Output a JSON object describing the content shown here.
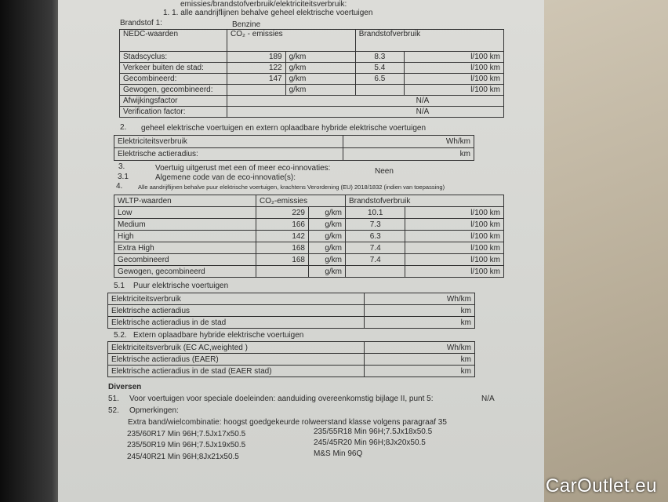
{
  "header_cut": "emissies/brandstofverbruik/elektriciteitsverbruik:",
  "sub_1_1": "1. 1. alle aandrijflijnen behalve geheel elektrische voertuigen",
  "fuel_label": "Brandstof 1:",
  "fuel_value": "Benzine",
  "nedc": {
    "headers": [
      "NEDC-waarden",
      "CO₂ - emissies",
      "Brandstofverbruik"
    ],
    "rows": [
      {
        "label": "Stadscyclus:",
        "co2": "189",
        "co2_unit": "g/km",
        "fuel": "8.3",
        "fuel_unit": "l/100 km"
      },
      {
        "label": "Verkeer buiten de stad:",
        "co2": "122",
        "co2_unit": "g/km",
        "fuel": "5.4",
        "fuel_unit": "l/100 km"
      },
      {
        "label": "Gecombineerd:",
        "co2": "147",
        "co2_unit": "g/km",
        "fuel": "6.5",
        "fuel_unit": "l/100 km"
      },
      {
        "label": "Gewogen, gecombineerd:",
        "co2": "",
        "co2_unit": "g/km",
        "fuel": "",
        "fuel_unit": "l/100 km"
      }
    ],
    "afwijkingsfactor": {
      "label": "Afwijkingsfactor",
      "value": "N/A"
    },
    "verification": {
      "label": "Verification factor:",
      "value": "N/A"
    }
  },
  "sec2": {
    "num": "2.",
    "title": "geheel elektrische voertuigen en extern oplaadbare hybride elektrische voertuigen",
    "rows": [
      {
        "label": "Elektriciteitsverbruik",
        "unit": "Wh/km"
      },
      {
        "label": "Elektrische actieradius:",
        "unit": "km"
      }
    ]
  },
  "sec3": {
    "num": "3.",
    "text": "Voertuig uitgerust met een of meer eco-innovaties:",
    "value": "Neen"
  },
  "sec3_1": {
    "num": "3.1",
    "text": "Algemene code van de eco-innovatie(s):"
  },
  "sec4": {
    "num": "4.",
    "text": "Alle aandrijflijnen behalve puur elektrische voertuigen, krachtens Verordening (EU) 2018/1832 (indien van toepassing)"
  },
  "wltp": {
    "headers": [
      "WLTP-waarden",
      "CO₂-emissies",
      "Brandstofverbruik"
    ],
    "rows": [
      {
        "label": "Low",
        "co2": "229",
        "co2_unit": "g/km",
        "fuel": "10.1",
        "fuel_unit": "l/100 km"
      },
      {
        "label": "Medium",
        "co2": "166",
        "co2_unit": "g/km",
        "fuel": "7.3",
        "fuel_unit": "l/100 km"
      },
      {
        "label": "High",
        "co2": "142",
        "co2_unit": "g/km",
        "fuel": "6.3",
        "fuel_unit": "l/100 km"
      },
      {
        "label": "Extra High",
        "co2": "168",
        "co2_unit": "g/km",
        "fuel": "7.4",
        "fuel_unit": "l/100 km"
      },
      {
        "label": "Gecombineerd",
        "co2": "168",
        "co2_unit": "g/km",
        "fuel": "7.4",
        "fuel_unit": "l/100 km"
      },
      {
        "label": "Gewogen, gecombineerd",
        "co2": "",
        "co2_unit": "g/km",
        "fuel": "",
        "fuel_unit": "l/100 km"
      }
    ]
  },
  "sec5_1": {
    "num": "5.1",
    "title": "Puur elektrische voertuigen",
    "rows": [
      {
        "label": "Elektriciteitsverbruik",
        "unit": "Wh/km"
      },
      {
        "label": "Elektrische actieradius",
        "unit": "km"
      },
      {
        "label": "Elektrische actieradius in de stad",
        "unit": "km"
      }
    ]
  },
  "sec5_2": {
    "num": "5.2.",
    "title": "Extern oplaadbare hybride elektrische voertuigen",
    "rows": [
      {
        "label": "Elektriciteitsverbruik (EC AC,weighted )",
        "unit": "Wh/km"
      },
      {
        "label": "Elektrische actieradius (EAER)",
        "unit": "km"
      },
      {
        "label": "Elektrische actieradius in de stad (EAER stad)",
        "unit": "km"
      }
    ]
  },
  "diversen": {
    "title": "Diversen",
    "item51": {
      "num": "51.",
      "text": "Voor voertuigen voor speciale doeleinden: aanduiding overeenkomstig bijlage II, punt 5:",
      "value": "N/A"
    },
    "item52": {
      "num": "52.",
      "text": "Opmerkingen:"
    },
    "extra": "Extra band/wielcombinatie: hoogst goedgekeurde rolweerstand klasse volgens paragraaf 35",
    "tyres_left": [
      "235/60R17 Min 96H;7.5Jx17x50.5",
      "235/50R19 Min 96H;7.5Jx19x50.5",
      "245/40R21 Min 96H;8Jx21x50.5"
    ],
    "tyres_right": [
      "235/55R18 Min 96H;7.5Jx18x50.5",
      "245/45R20 Min 96H;8Jx20x50.5",
      "M&S Min 96Q"
    ]
  },
  "watermark": "CarOutlet.eu"
}
